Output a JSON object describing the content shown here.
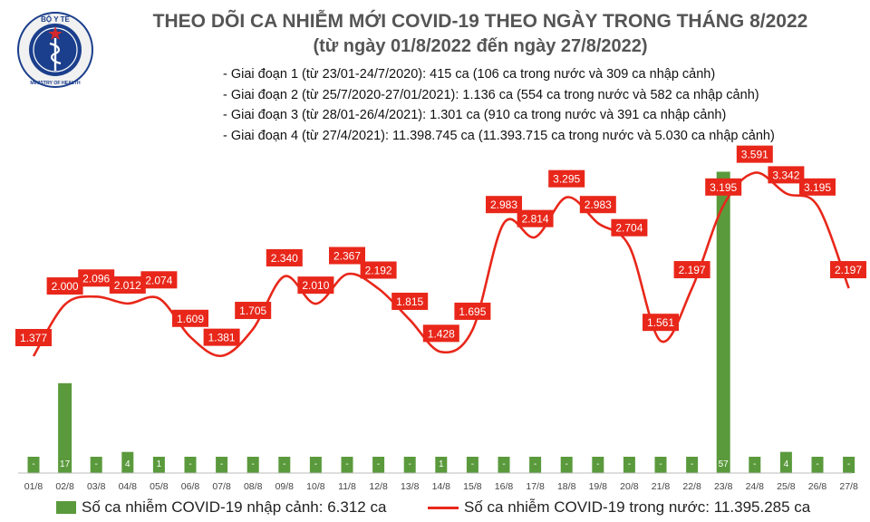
{
  "logo": {
    "top_text": "BỘ Y TẾ",
    "bottom_text": "MINISTRY OF HEALTH"
  },
  "title": {
    "line1": "THEO DÕI CA NHIỄM MỚI COVID-19 THEO NGÀY TRONG THÁNG 8/2022",
    "line2": "(từ ngày 01/8/2022 đến ngày 27/8/2022)"
  },
  "notes": [
    "- Giai đoạn 1 (từ 23/01-24/7/2020): 415 ca (106 ca trong nước và 309 ca nhập cảnh)",
    "- Giai đoạn 2 (từ 25/7/2020-27/01/2021): 1.136 ca (554 ca trong nước và 582 ca nhập cảnh)",
    "- Giai đoạn 3 (từ 28/01-26/4/2021): 1.301 ca (910 ca trong nước và 391 ca nhập cảnh)",
    "- Giai đoạn 4 (từ 27/4/2021): 11.398.745 ca (11.393.715 ca trong nước và 5.030 ca nhập cảnh)"
  ],
  "colors": {
    "bar": "#5a9a3c",
    "line": "#e8271a",
    "label_bg": "#e8271a",
    "label_text": "#ffffff"
  },
  "chart_data": {
    "type": "bar+line",
    "categories": [
      "01/8",
      "02/8",
      "03/8",
      "04/8",
      "05/8",
      "06/8",
      "07/8",
      "08/8",
      "09/8",
      "10/8",
      "11/8",
      "12/8",
      "13/8",
      "14/8",
      "15/8",
      "16/8",
      "17/8",
      "18/8",
      "19/8",
      "20/8",
      "21/8",
      "22/8",
      "23/8",
      "24/8",
      "25/8",
      "26/8",
      "27/8"
    ],
    "bars": {
      "name": "Số ca nhiễm COVID-19 nhập cảnh: 6.312 ca",
      "values": [
        0,
        17,
        0,
        4,
        1,
        0,
        0,
        0,
        0,
        0,
        0,
        0,
        0,
        1,
        0,
        0,
        0,
        0,
        0,
        0,
        0,
        0,
        57,
        0,
        4,
        0,
        0
      ],
      "labels": [
        "-",
        "17",
        "-",
        "4",
        "1",
        "-",
        "-",
        "-",
        "-",
        "-",
        "-",
        "-",
        "-",
        "1",
        "-",
        "-",
        "-",
        "-",
        "-",
        "-",
        "-",
        "-",
        "57",
        "-",
        "4",
        "-",
        "-"
      ],
      "ylim": [
        0,
        60
      ]
    },
    "line": {
      "name": "Số ca nhiễm COVID-19 trong nước: 11.395.285 ca",
      "values": [
        1377,
        2000,
        2096,
        2012,
        2074,
        1609,
        1381,
        1705,
        2340,
        2010,
        2367,
        2192,
        1815,
        1428,
        1695,
        2983,
        2814,
        3295,
        2983,
        2704,
        1561,
        2197,
        3195,
        3591,
        3342,
        3195,
        2197
      ],
      "labels": [
        "1.377",
        "2.000",
        "2.096",
        "2.012",
        "2.074",
        "1.609",
        "1.381",
        "1.705",
        "2.340",
        "2.010",
        "2.367",
        "2.192",
        "1.815",
        "1.428",
        "1.695",
        "2.983",
        "2.814",
        "3.295",
        "2.983",
        "2.704",
        "1.561",
        "2.197",
        "3.195",
        "3.591",
        "3.342",
        "3.195",
        "2.197"
      ]
    },
    "grid": false,
    "legend": "bottom"
  }
}
